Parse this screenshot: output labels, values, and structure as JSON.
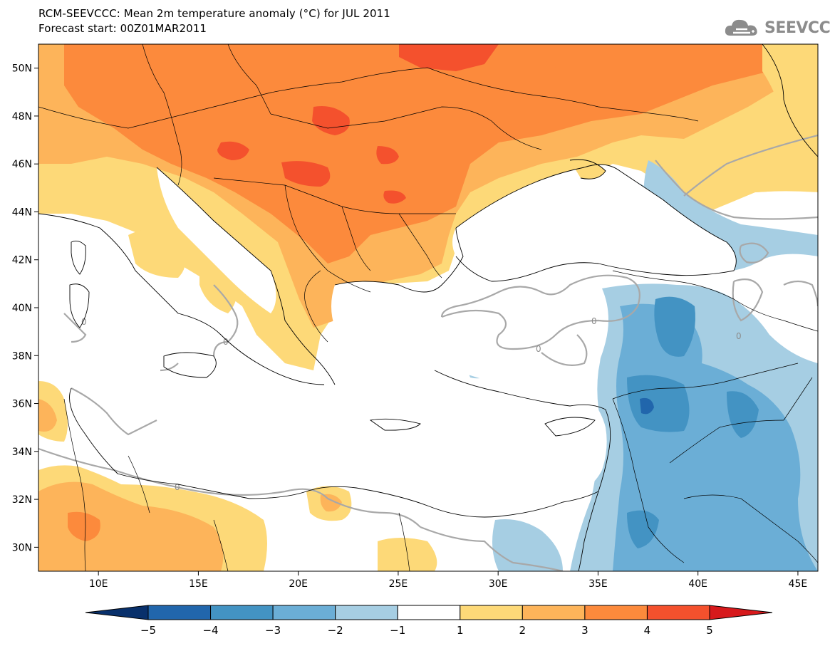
{
  "title": {
    "line1": "RCM-SEEVCCC: Mean 2m temperature anomaly (°C) for JUL 2011",
    "line2": "Forecast start: 00Z01MAR2011"
  },
  "logo": {
    "text": "SEEVCCC",
    "icon": "cloud-icon"
  },
  "map": {
    "lon_range": [
      7,
      46
    ],
    "lat_range": [
      29,
      51
    ],
    "lon_ticks": [
      {
        "lon": 10,
        "label": "10E"
      },
      {
        "lon": 15,
        "label": "15E"
      },
      {
        "lon": 20,
        "label": "20E"
      },
      {
        "lon": 25,
        "label": "25E"
      },
      {
        "lon": 30,
        "label": "30E"
      },
      {
        "lon": 35,
        "label": "35E"
      },
      {
        "lon": 40,
        "label": "40E"
      },
      {
        "lon": 45,
        "label": "45E"
      }
    ],
    "lat_ticks": [
      {
        "lat": 30,
        "label": "30N"
      },
      {
        "lat": 32,
        "label": "32N"
      },
      {
        "lat": 34,
        "label": "34N"
      },
      {
        "lat": 36,
        "label": "36N"
      },
      {
        "lat": 38,
        "label": "38N"
      },
      {
        "lat": 40,
        "label": "40N"
      },
      {
        "lat": 42,
        "label": "42N"
      },
      {
        "lat": 44,
        "label": "44N"
      },
      {
        "lat": 46,
        "label": "46N"
      },
      {
        "lat": 48,
        "label": "48N"
      },
      {
        "lat": 50,
        "label": "50N"
      }
    ],
    "contour_label": "0"
  },
  "colorbar": {
    "levels": [
      "-5",
      "-4",
      "-3",
      "-2",
      "-1",
      "1",
      "2",
      "3",
      "4",
      "5"
    ],
    "colors": [
      "#08306b",
      "#2166ac",
      "#4393c3",
      "#6baed6",
      "#a6cee3",
      "#ffffff",
      "#fdd978",
      "#fdb45a",
      "#fc8a3c",
      "#f4512d",
      "#d7191c"
    ]
  }
}
